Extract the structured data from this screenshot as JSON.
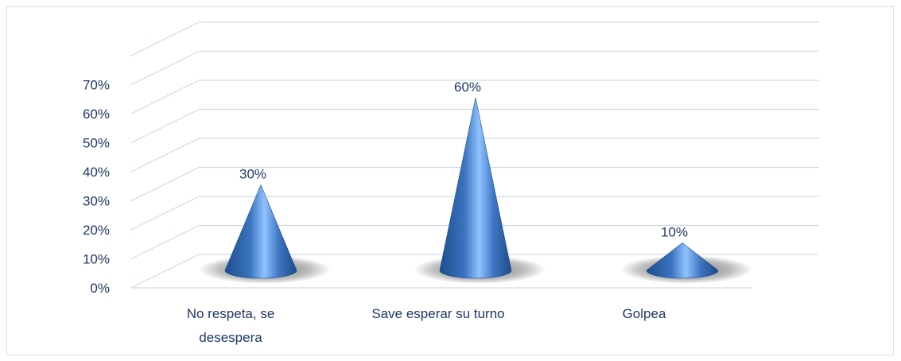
{
  "chart_data": {
    "type": "bar",
    "style": "3d-cone",
    "categories": [
      "No respeta, se desespera",
      "Save esperar su turno",
      "Golpea"
    ],
    "category_lines": [
      [
        "No respeta, se",
        "desespera"
      ],
      [
        "Save esperar su turno"
      ],
      [
        "Golpea"
      ]
    ],
    "values": [
      0.3,
      0.6,
      0.1
    ],
    "data_labels": [
      "30%",
      "60%",
      "10%"
    ],
    "y_ticks": [
      "0%",
      "10%",
      "20%",
      "30%",
      "40%",
      "50%",
      "60%",
      "70%"
    ],
    "ylim": [
      0,
      0.7
    ],
    "grid": true,
    "legend": "none",
    "colors": {
      "cone": "#3d6fb0",
      "text": "#1f3864",
      "grid": "#cfd9e6"
    }
  }
}
